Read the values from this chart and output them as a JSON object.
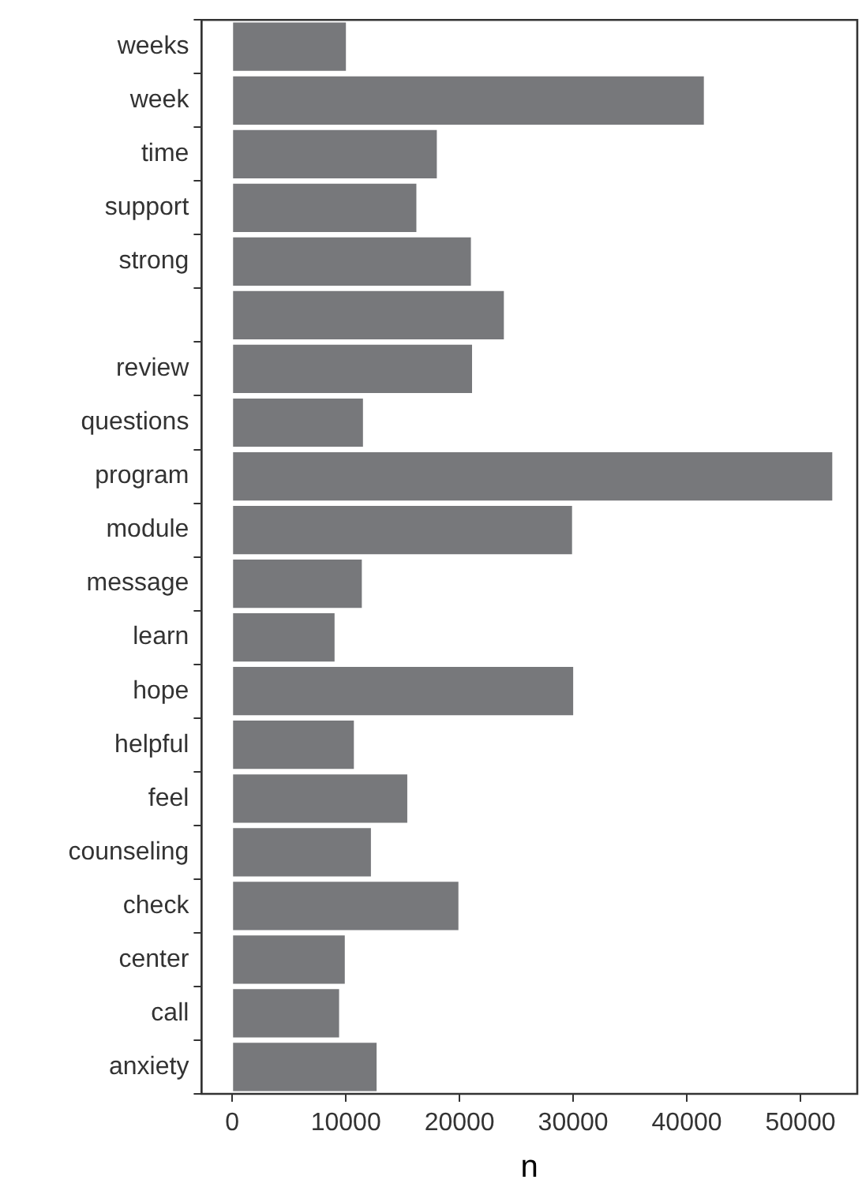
{
  "chart_data": {
    "type": "bar",
    "orientation": "horizontal",
    "xlabel": "n",
    "categories": [
      "weeks",
      "week",
      "time",
      "support",
      "strong",
      null,
      "review",
      "questions",
      "program",
      "module",
      "message",
      "learn",
      "hope",
      "helpful",
      "feel",
      "counseling",
      "check",
      "center",
      "call",
      "anxiety"
    ],
    "values": [
      10000,
      41500,
      18000,
      16200,
      21000,
      23900,
      21100,
      11500,
      52800,
      29900,
      11400,
      9000,
      30000,
      10700,
      15400,
      12200,
      19900,
      9900,
      9400,
      12700
    ],
    "color": "#77787b",
    "xlim": [
      -2700,
      55000
    ],
    "xticks": [
      0,
      10000,
      20000,
      30000,
      40000,
      50000
    ],
    "grid": false,
    "legend": false
  }
}
